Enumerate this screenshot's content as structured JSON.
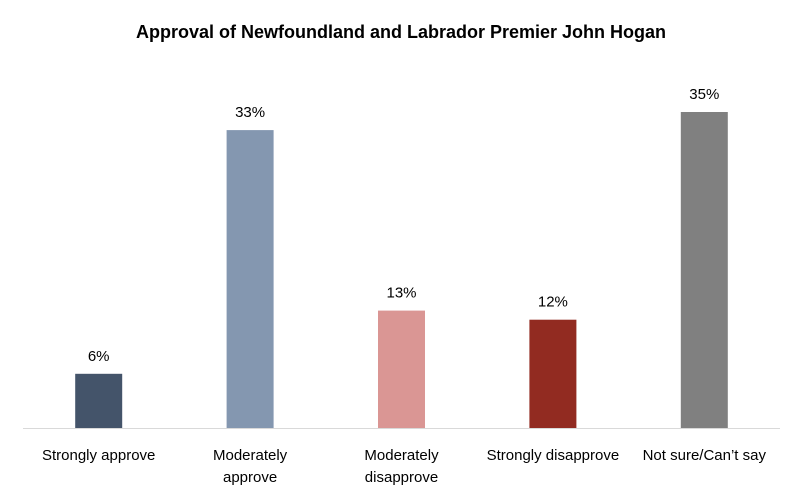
{
  "chart_data": {
    "type": "bar",
    "title": "Approval of Newfoundland and Labrador Premier John Hogan",
    "xlabel": "",
    "ylabel": "",
    "categories": [
      [
        "Strongly approve"
      ],
      [
        "Moderately",
        "approve"
      ],
      [
        "Moderately",
        "disapprove"
      ],
      [
        "Strongly disapprove"
      ],
      [
        "Not sure/Can’t say"
      ]
    ],
    "values": [
      6,
      33,
      13,
      12,
      35
    ],
    "data_labels": [
      "6%",
      "33%",
      "13%",
      "12%",
      "35%"
    ],
    "colors": [
      "#44546A",
      "#8497B0",
      "#DA9694",
      "#922B21",
      "#808080"
    ],
    "ylim": [
      0,
      35
    ],
    "grid": false,
    "legend": "none"
  }
}
